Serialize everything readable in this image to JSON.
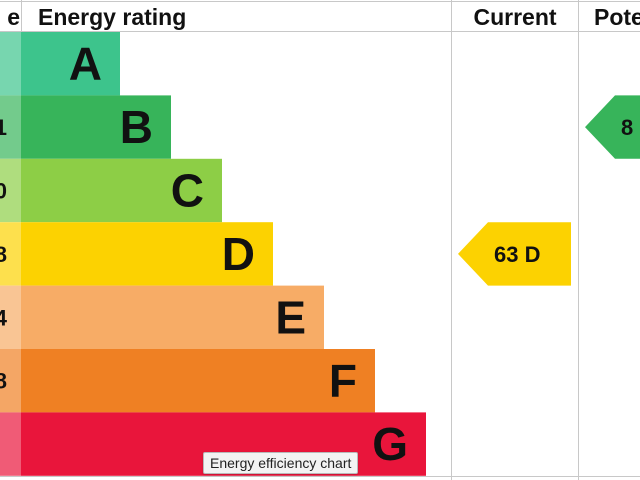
{
  "headers": {
    "score": "e",
    "rating": "Energy rating",
    "current": "Current",
    "potential": "Pote"
  },
  "tooltip": "Energy efficiency chart",
  "chart_data": {
    "type": "bar",
    "title": "",
    "categories": [
      "A",
      "B",
      "C",
      "D",
      "E",
      "F",
      "G"
    ],
    "score_labels": [
      "",
      "1",
      "0",
      "8",
      "4",
      "8",
      ""
    ],
    "colors": [
      "#3dc48c",
      "#37b45a",
      "#8dce46",
      "#fcd201",
      "#f7ac66",
      "#ef8023",
      "#e9153b"
    ],
    "current": {
      "value": 63,
      "band": "D",
      "label": "63 D",
      "color": "#fcd201"
    },
    "potential": {
      "value": 8,
      "band": "B",
      "label": "8",
      "color": "#37b45a"
    }
  }
}
